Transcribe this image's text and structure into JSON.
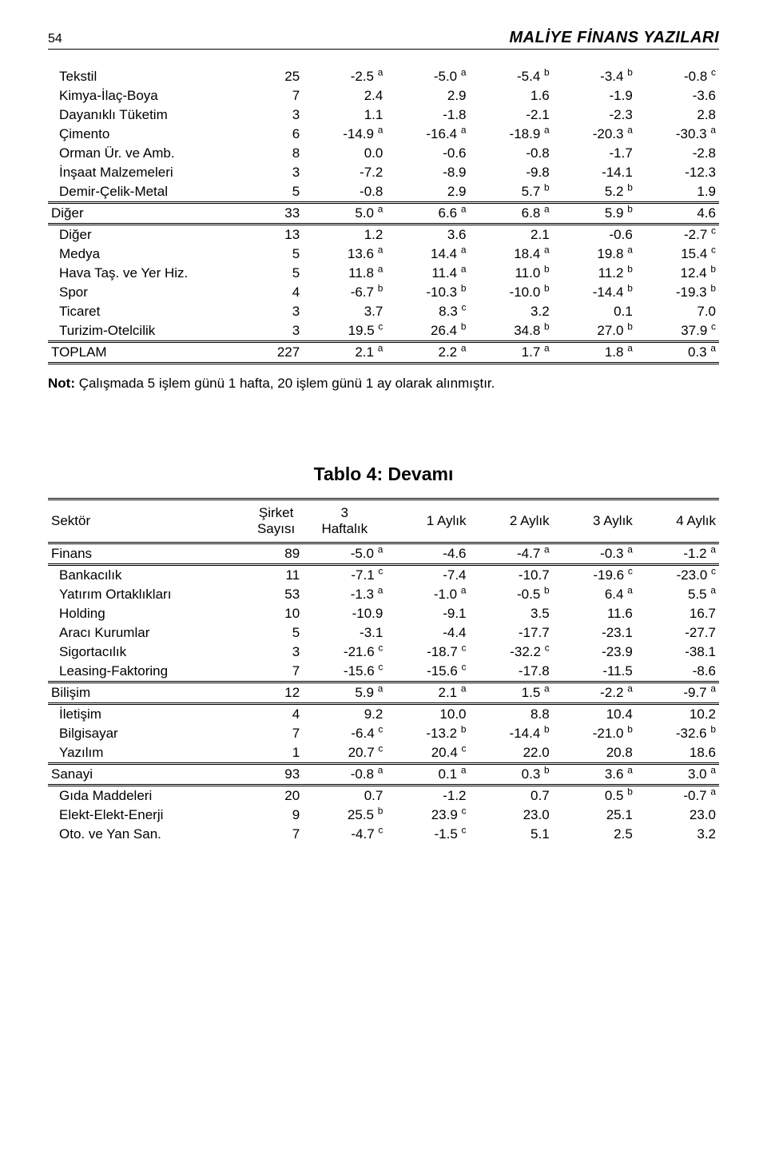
{
  "header": {
    "page_number": "54",
    "journal_title": "MALİYE FİNANS YAZILARI"
  },
  "colors": {
    "text": "#000000",
    "background": "#ffffff",
    "rule": "#000000"
  },
  "typography": {
    "body_fontsize_pt": 17,
    "title_fontsize_pt": 23,
    "header_fontsize_pt": 20,
    "font_family": "Century Gothic / Futura"
  },
  "table_top": {
    "columns": [
      "",
      "",
      "",
      "",
      "",
      "",
      ""
    ],
    "col_widths_pct": [
      30,
      8,
      12.4,
      12.4,
      12.4,
      12.4,
      12.4
    ],
    "groups": [
      {
        "rows": [
          {
            "name": "Tekstil",
            "n": "25",
            "v": [
              "-2.5",
              "-5.0",
              "-5.4",
              "-3.4",
              "-0.8"
            ],
            "sup": [
              "a",
              "a",
              "b",
              "b",
              "c"
            ]
          },
          {
            "name": "Kimya-İlaç-Boya",
            "n": "7",
            "v": [
              "2.4",
              "2.9",
              "1.6",
              "-1.9",
              "-3.6"
            ],
            "sup": [
              "",
              "",
              "",
              "",
              ""
            ]
          },
          {
            "name": "Dayanıklı Tüketim",
            "n": "3",
            "v": [
              "1.1",
              "-1.8",
              "-2.1",
              "-2.3",
              "2.8"
            ],
            "sup": [
              "",
              "",
              "",
              "",
              ""
            ]
          },
          {
            "name": "Çimento",
            "n": "6",
            "v": [
              "-14.9",
              "-16.4",
              "-18.9",
              "-20.3",
              "-30.3"
            ],
            "sup": [
              "a",
              "a",
              "a",
              "a",
              "a"
            ]
          },
          {
            "name": "Orman Ür. ve Amb.",
            "n": "8",
            "v": [
              "0.0",
              "-0.6",
              "-0.8",
              "-1.7",
              "-2.8"
            ],
            "sup": [
              "",
              "",
              "",
              "",
              ""
            ]
          },
          {
            "name": "İnşaat Malzemeleri",
            "n": "3",
            "v": [
              "-7.2",
              "-8.9",
              "-9.8",
              "-14.1",
              "-12.3"
            ],
            "sup": [
              "",
              "",
              "",
              "",
              ""
            ]
          },
          {
            "name": "Demir-Çelik-Metal",
            "n": "5",
            "v": [
              "-0.8",
              "2.9",
              "5.7",
              "5.2",
              "1.9"
            ],
            "sup": [
              "",
              "",
              "b",
              "b",
              ""
            ]
          }
        ]
      },
      {
        "header": {
          "name": "Diğer",
          "n": "33",
          "v": [
            "5.0",
            "6.6",
            "6.8",
            "5.9",
            "4.6"
          ],
          "sup": [
            "a",
            "a",
            "a",
            "b",
            ""
          ]
        },
        "rows": [
          {
            "name": "Diğer",
            "n": "13",
            "v": [
              "1.2",
              "3.6",
              "2.1",
              "-0.6",
              "-2.7"
            ],
            "sup": [
              "",
              "",
              "",
              "",
              "c"
            ]
          },
          {
            "name": "Medya",
            "n": "5",
            "v": [
              "13.6",
              "14.4",
              "18.4",
              "19.8",
              "15.4"
            ],
            "sup": [
              "a",
              "a",
              "a",
              "a",
              "c"
            ]
          },
          {
            "name": "Hava Taş. ve Yer Hiz.",
            "n": "5",
            "v": [
              "11.8",
              "11.4",
              "11.0",
              "11.2",
              "12.4"
            ],
            "sup": [
              "a",
              "a",
              "b",
              "b",
              "b"
            ]
          },
          {
            "name": "Spor",
            "n": "4",
            "v": [
              "-6.7",
              "-10.3",
              "-10.0",
              "-14.4",
              "-19.3"
            ],
            "sup": [
              "b",
              "b",
              "b",
              "b",
              "b"
            ]
          },
          {
            "name": "Ticaret",
            "n": "3",
            "v": [
              "3.7",
              "8.3",
              "3.2",
              "0.1",
              "7.0"
            ],
            "sup": [
              "",
              "c",
              "",
              "",
              ""
            ]
          },
          {
            "name": "Turizim-Otelcilik",
            "n": "3",
            "v": [
              "19.5",
              "26.4",
              "34.8",
              "27.0",
              "37.9"
            ],
            "sup": [
              "c",
              "b",
              "b",
              "b",
              "c"
            ]
          }
        ]
      }
    ],
    "total": {
      "name": "TOPLAM",
      "n": "227",
      "v": [
        "2.1",
        "2.2",
        "1.7",
        "1.8",
        "0.3"
      ],
      "sup": [
        "a",
        "a",
        "a",
        "a",
        "a"
      ]
    }
  },
  "note_label": "Not:",
  "note_text": " Çalışmada 5 işlem günü 1 hafta, 20 işlem günü 1 ay olarak alınmıştır.",
  "table4_title": "Tablo 4: Devamı",
  "table4": {
    "columns": [
      "Sektör",
      "Şirket Sayısı",
      "3 Haftalık",
      "1 Aylık",
      "2 Aylık",
      "3 Aylık",
      "4 Aylık"
    ],
    "header_lines": {
      "c0": "Sektör",
      "c1a": "Şirket",
      "c1b": "Sayısı",
      "c2a": "3",
      "c2b": "Haftalık",
      "c3": "1 Aylık",
      "c4": "2 Aylık",
      "c5": "3 Aylık",
      "c6": "4 Aylık"
    },
    "col_widths_pct": [
      30,
      8,
      12.4,
      12.4,
      12.4,
      12.4,
      12.4
    ],
    "groups": [
      {
        "header": {
          "name": "Finans",
          "n": "89",
          "v": [
            "-5.0",
            "-4.6",
            "-4.7",
            "-0.3",
            "-1.2"
          ],
          "sup": [
            "a",
            "",
            "a",
            "a",
            "a"
          ]
        },
        "rows": [
          {
            "name": "Bankacılık",
            "n": "11",
            "v": [
              "-7.1",
              "-7.4",
              "-10.7",
              "-19.6",
              "-23.0"
            ],
            "sup": [
              "c",
              "",
              "",
              "c",
              "c"
            ]
          },
          {
            "name": "Yatırım Ortaklıkları",
            "n": "53",
            "v": [
              "-1.3",
              "-1.0",
              "-0.5",
              "6.4",
              "5.5"
            ],
            "sup": [
              "a",
              "a",
              "b",
              "a",
              "a"
            ]
          },
          {
            "name": "Holding",
            "n": "10",
            "v": [
              "-10.9",
              "-9.1",
              "3.5",
              "11.6",
              "16.7"
            ],
            "sup": [
              "",
              "",
              "",
              "",
              ""
            ]
          },
          {
            "name": "Aracı Kurumlar",
            "n": "5",
            "v": [
              "-3.1",
              "-4.4",
              "-17.7",
              "-23.1",
              "-27.7"
            ],
            "sup": [
              "",
              "",
              "",
              "",
              ""
            ]
          },
          {
            "name": "Sigortacılık",
            "n": "3",
            "v": [
              "-21.6",
              "-18.7",
              "-32.2",
              "-23.9",
              "-38.1"
            ],
            "sup": [
              "c",
              "c",
              "c",
              "",
              ""
            ]
          },
          {
            "name": "Leasing-Faktoring",
            "n": "7",
            "v": [
              "-15.6",
              "-15.6",
              "-17.8",
              "-11.5",
              "-8.6"
            ],
            "sup": [
              "c",
              "c",
              "",
              "",
              ""
            ]
          }
        ]
      },
      {
        "header": {
          "name": "Bilişim",
          "n": "12",
          "v": [
            "5.9",
            "2.1",
            "1.5",
            "-2.2",
            "-9.7"
          ],
          "sup": [
            "a",
            "a",
            "a",
            "a",
            "a"
          ]
        },
        "rows": [
          {
            "name": "İletişim",
            "n": "4",
            "v": [
              "9.2",
              "10.0",
              "8.8",
              "10.4",
              "10.2"
            ],
            "sup": [
              "",
              "",
              "",
              "",
              ""
            ]
          },
          {
            "name": "Bilgisayar",
            "n": "7",
            "v": [
              "-6.4",
              "-13.2",
              "-14.4",
              "-21.0",
              "-32.6"
            ],
            "sup": [
              "c",
              "b",
              "b",
              "b",
              "b"
            ]
          },
          {
            "name": "Yazılım",
            "n": "1",
            "v": [
              "20.7",
              "20.4",
              "22.0",
              "20.8",
              "18.6"
            ],
            "sup": [
              "c",
              "c",
              "",
              "",
              ""
            ]
          }
        ]
      },
      {
        "header": {
          "name": "Sanayi",
          "n": "93",
          "v": [
            "-0.8",
            "0.1",
            "0.3",
            "3.6",
            "3.0"
          ],
          "sup": [
            "a",
            "a",
            "b",
            "a",
            "a"
          ]
        },
        "rows": [
          {
            "name": "Gıda Maddeleri",
            "n": "20",
            "v": [
              "0.7",
              "-1.2",
              "0.7",
              "0.5",
              "-0.7"
            ],
            "sup": [
              "",
              "",
              "",
              "b",
              "a"
            ]
          },
          {
            "name": "Elekt-Elekt-Enerji",
            "n": "9",
            "v": [
              "25.5",
              "23.9",
              "23.0",
              "25.1",
              "23.0"
            ],
            "sup": [
              "b",
              "c",
              "",
              "",
              ""
            ]
          },
          {
            "name": "Oto. ve Yan San.",
            "n": "7",
            "v": [
              "-4.7",
              "-1.5",
              "5.1",
              "2.5",
              "3.2"
            ],
            "sup": [
              "c",
              "c",
              "",
              "",
              ""
            ]
          }
        ]
      }
    ]
  }
}
